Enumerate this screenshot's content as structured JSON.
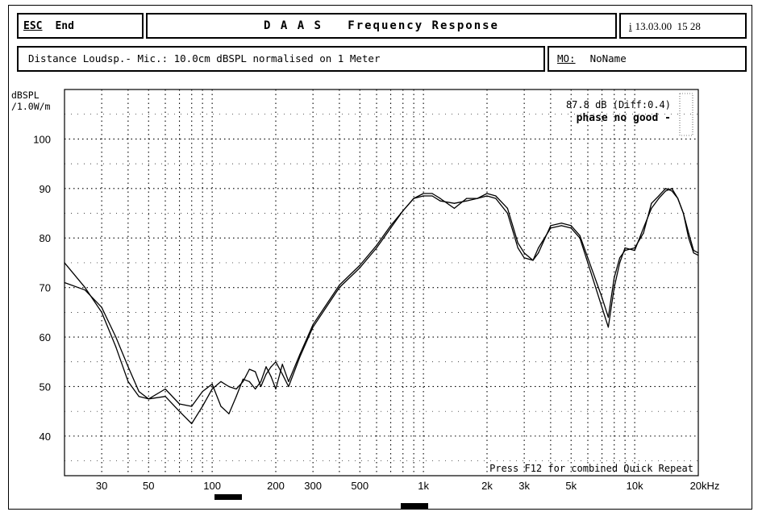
{
  "header": {
    "esc_label": "ESC",
    "end_label": "End",
    "title": "D A A S   Frequency Response",
    "info_icon_label": "i",
    "datetime": "13.03.00  15 28"
  },
  "subheader": {
    "distance_text": "Distance Loudsp.- Mic.: 10.0cm dBSPL normalised on 1 Meter",
    "mo_label": "MO:",
    "mo_value": "NoName"
  },
  "chart_data": {
    "type": "line",
    "ylabel_line1": "dBSPL",
    "ylabel_line2": "/1.0W/m",
    "xlim": [
      20,
      20000
    ],
    "ylim": [
      32,
      110
    ],
    "xscale": "log",
    "grid": true,
    "xticks": [
      {
        "value": 30,
        "label": "30"
      },
      {
        "value": 50,
        "label": "50"
      },
      {
        "value": 100,
        "label": "100"
      },
      {
        "value": 200,
        "label": "200"
      },
      {
        "value": 300,
        "label": "300"
      },
      {
        "value": 500,
        "label": "500"
      },
      {
        "value": 1000,
        "label": "1k"
      },
      {
        "value": 2000,
        "label": "2k"
      },
      {
        "value": 3000,
        "label": "3k"
      },
      {
        "value": 5000,
        "label": "5k"
      },
      {
        "value": 10000,
        "label": "10k"
      },
      {
        "value": 20000,
        "label": "20kHz"
      }
    ],
    "yticks": [
      40,
      50,
      60,
      70,
      80,
      90,
      100
    ],
    "annotations": {
      "level": "87.8 dB (Diff:0.4)",
      "phase": "phase no good -",
      "footer": "Press F12 for combined Quick Repeat"
    },
    "series": [
      {
        "color": "#000000",
        "x": [
          20,
          25,
          30,
          35,
          40,
          45,
          50,
          60,
          70,
          80,
          90,
          100,
          110,
          120,
          130,
          140,
          150,
          160,
          170,
          180,
          190,
          200,
          215,
          230,
          260,
          300,
          400,
          500,
          600,
          700,
          800,
          900,
          1000,
          1100,
          1200,
          1400,
          1600,
          1800,
          2000,
          2200,
          2500,
          2800,
          3000,
          3300,
          3500,
          4000,
          4500,
          5000,
          5500,
          6000,
          7000,
          7500,
          8000,
          8500,
          9000,
          10000,
          11000,
          12000,
          13000,
          14000,
          15000,
          16000,
          17000,
          18000,
          19000,
          20000
        ],
        "y": [
          71,
          69.5,
          66,
          60,
          54,
          49,
          47.5,
          48,
          45,
          42.5,
          46,
          49.5,
          51,
          50,
          49.5,
          51,
          53.5,
          53,
          50,
          52.5,
          54,
          55,
          52.5,
          50,
          56,
          62,
          70,
          74,
          78,
          82,
          85.5,
          88,
          89,
          89,
          88,
          86,
          88,
          88,
          88.5,
          88,
          85,
          78,
          76,
          75.5,
          78,
          82,
          82.5,
          82,
          80,
          75,
          66,
          62,
          70,
          75,
          78,
          77.5,
          82,
          86,
          88,
          89.5,
          90,
          88,
          85,
          80,
          77,
          76.5
        ]
      },
      {
        "color": "#000000",
        "x": [
          20,
          25,
          30,
          35,
          40,
          45,
          50,
          60,
          70,
          80,
          90,
          100,
          110,
          120,
          130,
          140,
          150,
          160,
          170,
          180,
          190,
          200,
          215,
          230,
          260,
          300,
          400,
          500,
          600,
          700,
          800,
          900,
          1000,
          1100,
          1200,
          1400,
          1600,
          1800,
          2000,
          2200,
          2500,
          2800,
          3000,
          3300,
          3500,
          4000,
          4500,
          5000,
          5500,
          6000,
          7000,
          7500,
          8000,
          8500,
          9000,
          10000,
          11000,
          12000,
          13000,
          14000,
          15000,
          16000,
          17000,
          18000,
          19000,
          20000
        ],
        "y": [
          75,
          70,
          65,
          58,
          51,
          48,
          47.5,
          49.5,
          46.5,
          46,
          49,
          50.5,
          46,
          44.5,
          48,
          51.5,
          51,
          49.5,
          51,
          54,
          52,
          49.5,
          54.5,
          51,
          56.5,
          62.5,
          70.5,
          74.5,
          78.5,
          82.5,
          85.5,
          88,
          88.5,
          88.5,
          87.5,
          87,
          87.5,
          88,
          89,
          88.5,
          86,
          79,
          77,
          75.5,
          77,
          82.5,
          83,
          82.5,
          80.5,
          76,
          68,
          64,
          72,
          76,
          77.5,
          78,
          81,
          87,
          88.5,
          90,
          89.5,
          88,
          85,
          81,
          77.5,
          77
        ]
      }
    ]
  }
}
